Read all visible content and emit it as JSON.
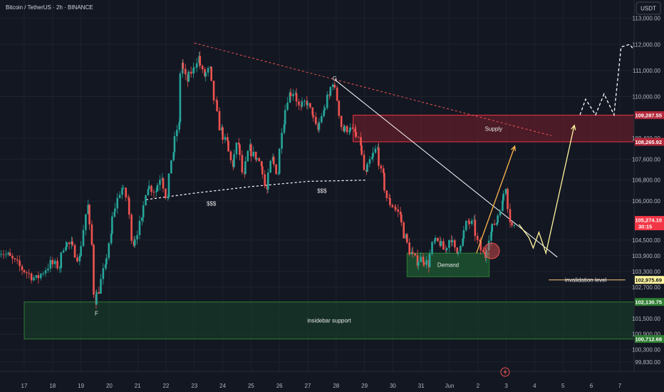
{
  "header": {
    "symbol_title": "Bitcoin / TetherUS · 2h · BINANCE",
    "currency": "USDT"
  },
  "colors": {
    "background": "#131722",
    "up": "#26a69a",
    "down": "#ef5350",
    "grid": "#1e222d",
    "supply_fill": "#7a1f2b",
    "demand_fill": "#1e5631",
    "support_fill": "#17402a",
    "projection_yellow": "#fff59d",
    "projection_orange": "#ffb74d",
    "price_tag": "#f23645"
  },
  "chart_data": {
    "type": "candlestick",
    "x_axis": {
      "tick_labels": [
        "17",
        "18",
        "19",
        "20",
        "21",
        "22",
        "23",
        "24",
        "25",
        "26",
        "27",
        "28",
        "29",
        "30",
        "31",
        "Jun",
        "2",
        "3",
        "4",
        "5",
        "6",
        "7"
      ]
    },
    "y_axis": {
      "unit": "USDT",
      "ylim": [
        99500,
        113700
      ],
      "tick_labels": [
        {
          "value": 113000,
          "label": "113,000.00"
        },
        {
          "value": 112000,
          "label": "112,000.00"
        },
        {
          "value": 111000,
          "label": "111,000.00"
        },
        {
          "value": 110000,
          "label": "110,000.00"
        },
        {
          "value": 108400,
          "label": "108,400.00"
        },
        {
          "value": 107600,
          "label": "107,600.00"
        },
        {
          "value": 106800,
          "label": "106,800.00"
        },
        {
          "value": 106000,
          "label": "106,000.00"
        },
        {
          "value": 104500,
          "label": "104,500.00"
        },
        {
          "value": 103900,
          "label": "103,900.00"
        },
        {
          "value": 103300,
          "label": "103,300.00"
        },
        {
          "value": 102700,
          "label": "102,700.00"
        },
        {
          "value": 101500,
          "label": "101,500.00"
        },
        {
          "value": 100900,
          "label": "100,900.00"
        },
        {
          "value": 100300,
          "label": "100,300.00"
        },
        {
          "value": 99830,
          "label": "99,830.00"
        }
      ]
    },
    "price_tags": [
      {
        "value": 109287.55,
        "label": "109,287.55",
        "color": "#b2283a"
      },
      {
        "value": 108265.92,
        "label": "108,265.92",
        "color": "#b2283a"
      },
      {
        "value": 105274.1,
        "label": "105,274.10",
        "color": "#f23645"
      },
      {
        "value": 102975.69,
        "label": "102,975.69",
        "color": "#fff59d"
      },
      {
        "value": 102130.75,
        "label": "102,130.75",
        "color": "#2e7d32"
      },
      {
        "value": 100712.68,
        "label": "100,712.68",
        "color": "#2e7d32"
      }
    ],
    "countdown": "30:15",
    "zones": [
      {
        "name": "Supply",
        "from_x": 11.6,
        "to_x": 22.0,
        "low": 108265.92,
        "high": 109287.55,
        "color": "#7a1f2b"
      },
      {
        "name": "Demand",
        "from_x": 13.5,
        "to_x": 16.4,
        "low": 103100,
        "high": 104000,
        "color": "#1e5631"
      },
      {
        "name": "insidebar support",
        "from_x": 0,
        "to_x": 22.0,
        "low": 100712.68,
        "high": 102130.75,
        "color": "#17402a"
      }
    ],
    "annotations": [
      {
        "text": "F",
        "x": 2.55,
        "y": 101700
      },
      {
        "text": "G",
        "x": 10.95,
        "y": 110700
      },
      {
        "text": "$$$",
        "x": 6.6,
        "y": 105900
      },
      {
        "text": "$$$",
        "x": 10.5,
        "y": 106400
      },
      {
        "text": "invalidation level",
        "x": 19.8,
        "y": 102975.69
      }
    ],
    "lines": [
      {
        "style": "dashed-red",
        "points": [
          [
            6.0,
            112050
          ],
          [
            18.6,
            108500
          ]
        ]
      },
      {
        "style": "dashed-white",
        "points": [
          [
            4.3,
            106050
          ],
          [
            6.0,
            106300
          ],
          [
            8.0,
            106550
          ],
          [
            10.0,
            106750
          ],
          [
            12.1,
            106800
          ]
        ]
      },
      {
        "style": "solid-white",
        "points": [
          [
            10.95,
            110650
          ],
          [
            18.8,
            103850
          ]
        ]
      },
      {
        "style": "solid-yellow",
        "points": [
          [
            18.5,
            102975.69
          ],
          [
            21.2,
            102975.69
          ]
        ]
      }
    ],
    "projections": [
      {
        "style": "orange",
        "points": [
          [
            15.95,
            104000
          ],
          [
            17.3,
            108100
          ]
        ]
      },
      {
        "style": "yellow",
        "points": [
          [
            17.45,
            105100
          ],
          [
            17.8,
            104600
          ],
          [
            17.95,
            104200
          ],
          [
            18.15,
            104800
          ],
          [
            18.4,
            104000
          ],
          [
            19.4,
            108900
          ]
        ]
      },
      {
        "style": "white-dashed",
        "points": [
          [
            19.6,
            109300
          ],
          [
            19.8,
            109900
          ],
          [
            20.15,
            109300
          ],
          [
            20.45,
            110100
          ],
          [
            20.8,
            109300
          ],
          [
            21.05,
            111900
          ],
          [
            21.35,
            112000
          ],
          [
            21.5,
            111800
          ]
        ]
      }
    ],
    "candles_anchor": [
      [
        -0.9,
        104200
      ],
      [
        -0.5,
        103900
      ],
      [
        0,
        103400
      ],
      [
        0.5,
        103000
      ],
      [
        1.0,
        103600
      ],
      [
        1.3,
        103500
      ],
      [
        1.5,
        104400
      ],
      [
        1.7,
        104300
      ],
      [
        2.0,
        103800
      ],
      [
        2.3,
        105800
      ],
      [
        2.45,
        104300
      ],
      [
        2.55,
        102200
      ],
      [
        2.7,
        102600
      ],
      [
        2.9,
        103400
      ],
      [
        3.1,
        104600
      ],
      [
        3.2,
        105500
      ],
      [
        3.5,
        106500
      ],
      [
        3.7,
        106100
      ],
      [
        3.9,
        104400
      ],
      [
        4.2,
        105200
      ],
      [
        4.4,
        106600
      ],
      [
        4.7,
        106400
      ],
      [
        4.9,
        107000
      ],
      [
        5.1,
        106100
      ],
      [
        5.3,
        107900
      ],
      [
        5.5,
        108900
      ],
      [
        5.6,
        111300
      ],
      [
        5.8,
        110600
      ],
      [
        6.0,
        111000
      ],
      [
        6.2,
        111500
      ],
      [
        6.4,
        110800
      ],
      [
        6.6,
        111000
      ],
      [
        6.8,
        109700
      ],
      [
        7.0,
        108700
      ],
      [
        7.2,
        108200
      ],
      [
        7.4,
        107400
      ],
      [
        7.6,
        108200
      ],
      [
        7.8,
        106900
      ],
      [
        8.0,
        108000
      ],
      [
        8.2,
        107700
      ],
      [
        8.4,
        107500
      ],
      [
        8.6,
        106400
      ],
      [
        8.8,
        107600
      ],
      [
        9.0,
        107100
      ],
      [
        9.2,
        109100
      ],
      [
        9.4,
        110100
      ],
      [
        9.6,
        110200
      ],
      [
        9.8,
        109500
      ],
      [
        10.0,
        109800
      ],
      [
        10.2,
        109400
      ],
      [
        10.4,
        108700
      ],
      [
        10.6,
        109400
      ],
      [
        10.8,
        110000
      ],
      [
        10.95,
        110600
      ],
      [
        11.1,
        109900
      ],
      [
        11.3,
        108700
      ],
      [
        11.5,
        108800
      ],
      [
        11.7,
        108600
      ],
      [
        11.9,
        108200
      ],
      [
        12.1,
        107000
      ],
      [
        12.3,
        107600
      ],
      [
        12.5,
        108000
      ],
      [
        12.7,
        106900
      ],
      [
        12.9,
        106000
      ],
      [
        13.1,
        105800
      ],
      [
        13.3,
        105500
      ],
      [
        13.5,
        104600
      ],
      [
        13.7,
        104000
      ],
      [
        13.9,
        103700
      ],
      [
        14.1,
        103800
      ],
      [
        14.3,
        103600
      ],
      [
        14.5,
        104400
      ],
      [
        14.7,
        104400
      ],
      [
        14.9,
        104100
      ],
      [
        15.1,
        104600
      ],
      [
        15.3,
        104000
      ],
      [
        15.5,
        104500
      ],
      [
        15.7,
        105200
      ],
      [
        15.9,
        105100
      ],
      [
        16.1,
        104300
      ],
      [
        16.3,
        103900
      ],
      [
        16.5,
        104800
      ],
      [
        16.7,
        105200
      ],
      [
        16.9,
        105900
      ],
      [
        17.05,
        106600
      ],
      [
        17.2,
        105300
      ],
      [
        17.3,
        105000
      ]
    ]
  }
}
